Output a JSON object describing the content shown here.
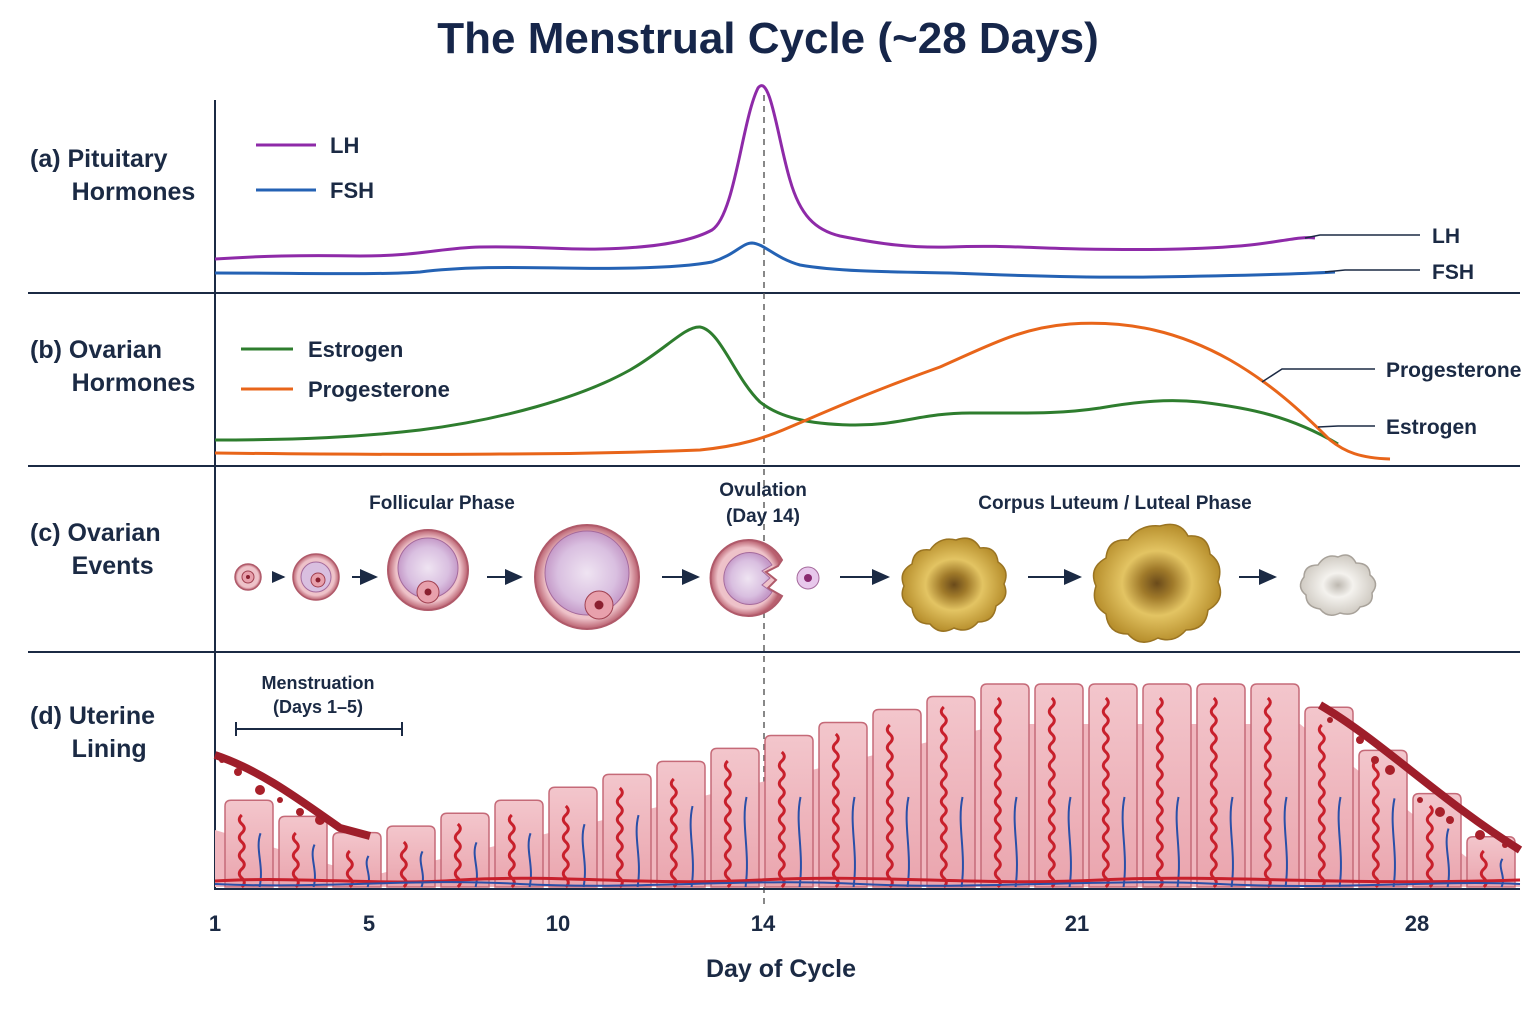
{
  "title": "The Menstrual Cycle (~28 Days)",
  "rows": {
    "a": "(a) Pituitary\n      Hormones",
    "b": "(b) Ovarian\n      Hormones",
    "c": "(c) Ovarian\n      Events",
    "d": "(d) Uterine\n      Lining"
  },
  "legend": {
    "lh": "LH",
    "fsh": "FSH",
    "estrogen": "Estrogen",
    "progesterone": "Progesterone"
  },
  "end_labels": {
    "lh": "LH",
    "fsh": "FSH",
    "progesterone": "Progesterone",
    "estrogen": "Estrogen"
  },
  "phases": {
    "follicular": "Follicular Phase",
    "ovulation_line1": "Ovulation",
    "ovulation_line2": "(Day 14)",
    "luteal": "Corpus Luteum / Luteal Phase"
  },
  "menstruation": {
    "line1": "Menstruation",
    "line2": "(Days 1–5)"
  },
  "x_axis": {
    "label": "Day of Cycle",
    "ticks": [
      "1",
      "5",
      "10",
      "14",
      "21",
      "28"
    ]
  },
  "colors": {
    "lh": "#8e2aa8",
    "fsh": "#2462b4",
    "estrogen": "#2e7d2e",
    "progesterone": "#e8651a",
    "lining": "#f1b9c0",
    "vessel_red": "#c8202c",
    "vessel_blue": "#2a4fa8",
    "follicle": "#e7a8b3",
    "corpus_luteum": "#d8b64a",
    "corpus_albicans": "#e6e3de"
  },
  "icons": [
    "follicle-icon",
    "arrow-right-icon",
    "ruptured-follicle-icon",
    "ovum-icon",
    "corpus-luteum-icon",
    "corpus-albicans-icon"
  ]
}
